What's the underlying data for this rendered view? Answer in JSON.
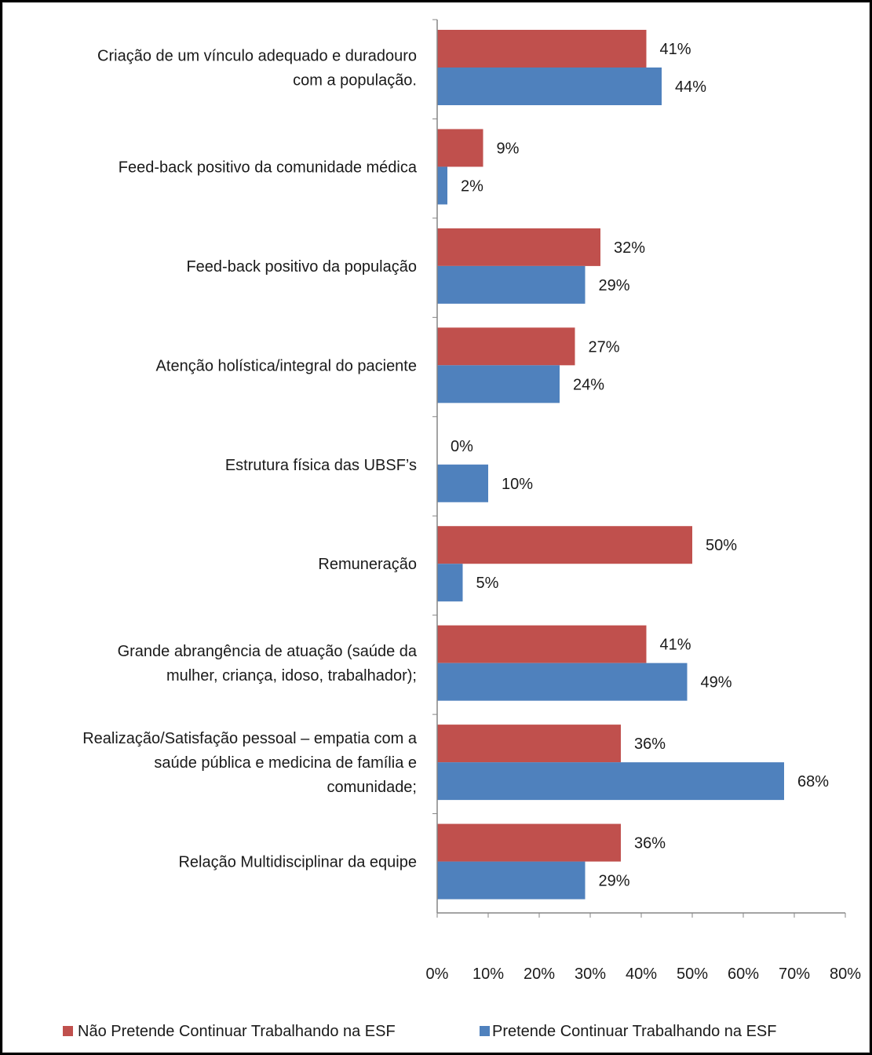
{
  "chart_data": {
    "type": "bar",
    "orientation": "horizontal",
    "title": "",
    "xlabel": "",
    "ylabel": "",
    "xlim": [
      0,
      80
    ],
    "x_ticks": [
      "0%",
      "10%",
      "20%",
      "30%",
      "40%",
      "50%",
      "60%",
      "70%",
      "80%"
    ],
    "grid": false,
    "legend_position": "bottom",
    "categories": [
      [
        "Criação de um vínculo adequado e duradouro",
        "com a população."
      ],
      [
        "Feed-back positivo da comunidade médica"
      ],
      [
        "Feed-back positivo da população"
      ],
      [
        "Atenção holística/integral do paciente"
      ],
      [
        "Estrutura física das UBSF’s"
      ],
      [
        "Remuneração"
      ],
      [
        "Grande abrangência de atuação (saúde da",
        "mulher, criança, idoso, trabalhador);"
      ],
      [
        "Realização/Satisfação pessoal – empatia com a",
        "saúde pública e medicina de família e",
        "comunidade;"
      ],
      [
        "Relação Multidisciplinar da equipe"
      ]
    ],
    "series": [
      {
        "name": "Não Pretende Continuar Trabalhando na ESF",
        "color": "#C0504D",
        "values": [
          41,
          9,
          32,
          27,
          0,
          50,
          41,
          36,
          36
        ],
        "labels": [
          "41%",
          "9%",
          "32%",
          "27%",
          "0%",
          "50%",
          "41%",
          "36%",
          "36%"
        ]
      },
      {
        "name": "Pretende Continuar Trabalhando na ESF",
        "color": "#4F81BD",
        "values": [
          44,
          2,
          29,
          24,
          10,
          5,
          49,
          68,
          29
        ],
        "labels": [
          "44%",
          "2%",
          "29%",
          "24%",
          "10%",
          "5%",
          "49%",
          "68%",
          "29%"
        ]
      }
    ]
  }
}
